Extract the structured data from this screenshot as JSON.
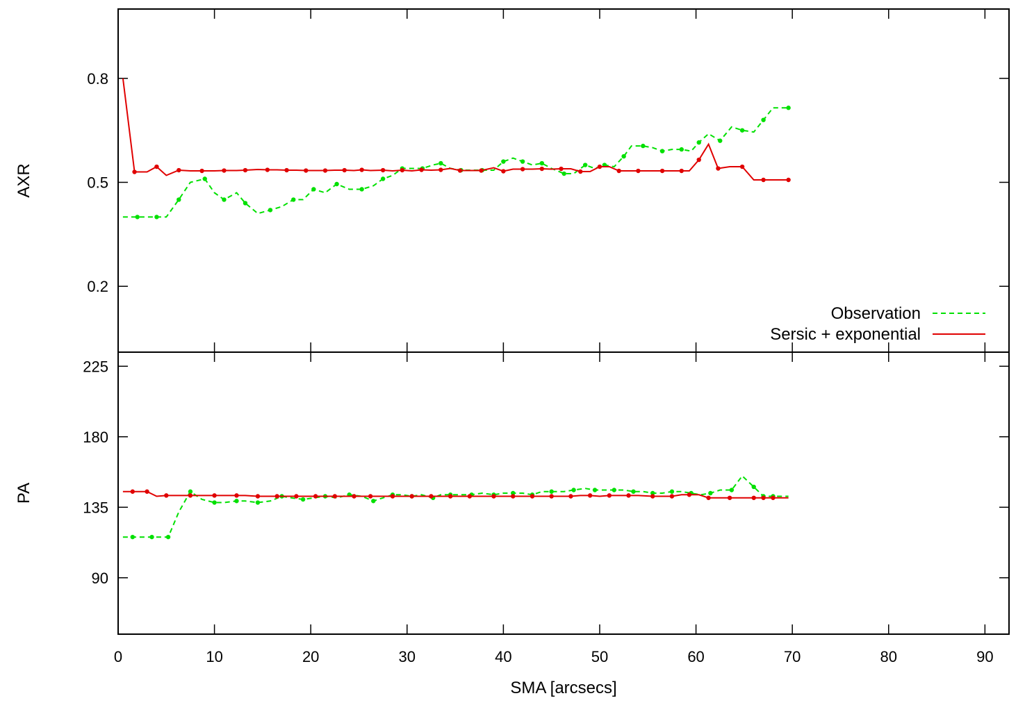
{
  "chart_data": {
    "type": "line",
    "xlabel": "SMA [arcsecs]",
    "xlim": [
      0,
      92.5
    ],
    "xticks": [
      0,
      10,
      20,
      30,
      40,
      50,
      60,
      70,
      80,
      90
    ],
    "legend": {
      "placement": "bottom-right of top panel",
      "entries": [
        "Observation",
        "Sersic + exponential"
      ]
    },
    "colors": {
      "Observation": "#00e000",
      "Sersic + exponential": "#e00000"
    },
    "panels": [
      {
        "ylabel": "AXR",
        "ylim": [
          0.01,
          1.0
        ],
        "yticks": [
          0.2,
          0.5,
          0.8
        ],
        "series": [
          {
            "name": "Observation",
            "style": "dashed",
            "x": [
              0.5,
              2.0,
              3.0,
              4.0,
              5.0,
              6.3,
              7.5,
              9.0,
              10.0,
              11.0,
              12.3,
              13.2,
              14.5,
              15.8,
              17.0,
              18.2,
              19.2,
              20.3,
              21.5,
              22.7,
              24.0,
              25.3,
              26.5,
              27.5,
              28.5,
              29.5,
              30.5,
              31.6,
              32.7,
              33.5,
              34.5,
              35.6,
              36.7,
              37.8,
              39.0,
              40.0,
              41.0,
              42.0,
              43.0,
              44.0,
              45.0,
              46.3,
              47.3,
              48.5,
              49.5,
              50.5,
              51.5,
              52.5,
              53.3,
              54.5,
              55.5,
              56.5,
              57.5,
              58.5,
              59.5,
              60.3,
              61.3,
              62.5,
              63.7,
              64.8,
              66.0,
              67.0,
              68.0,
              69.6
            ],
            "y": [
              0.4,
              0.4,
              0.4,
              0.4,
              0.4,
              0.45,
              0.5,
              0.51,
              0.47,
              0.45,
              0.47,
              0.44,
              0.41,
              0.42,
              0.43,
              0.45,
              0.45,
              0.48,
              0.47,
              0.495,
              0.48,
              0.48,
              0.49,
              0.51,
              0.52,
              0.54,
              0.54,
              0.54,
              0.55,
              0.555,
              0.54,
              0.535,
              0.535,
              0.535,
              0.535,
              0.56,
              0.57,
              0.56,
              0.55,
              0.555,
              0.54,
              0.525,
              0.525,
              0.55,
              0.54,
              0.55,
              0.545,
              0.575,
              0.605,
              0.605,
              0.6,
              0.59,
              0.595,
              0.595,
              0.59,
              0.615,
              0.64,
              0.62,
              0.66,
              0.65,
              0.645,
              0.68,
              0.715,
              0.715
            ]
          },
          {
            "name": "Sersic + exponential",
            "style": "solid",
            "x": [
              0.5,
              1.7,
              3.0,
              4.0,
              5.0,
              6.3,
              7.5,
              8.7,
              10.0,
              11.0,
              12.3,
              13.2,
              14.5,
              15.5,
              16.5,
              17.5,
              18.5,
              19.5,
              20.5,
              21.5,
              22.5,
              23.5,
              24.5,
              25.3,
              26.2,
              27.5,
              28.5,
              29.5,
              30.5,
              31.5,
              32.5,
              33.5,
              34.5,
              35.5,
              36.5,
              37.7,
              39.0,
              40.0,
              41.0,
              42.0,
              43.0,
              44.0,
              45.0,
              46.0,
              47.0,
              48.0,
              49.0,
              50.0,
              51.0,
              52.0,
              53.0,
              54.0,
              55.5,
              56.5,
              57.5,
              58.5,
              59.3,
              60.3,
              61.3,
              62.3,
              63.5,
              64.8,
              66.0,
              67.0,
              68.0,
              69.6
            ],
            "y": [
              0.8,
              0.53,
              0.53,
              0.545,
              0.52,
              0.535,
              0.533,
              0.533,
              0.533,
              0.534,
              0.534,
              0.535,
              0.537,
              0.536,
              0.536,
              0.535,
              0.535,
              0.534,
              0.534,
              0.534,
              0.535,
              0.535,
              0.534,
              0.536,
              0.534,
              0.535,
              0.533,
              0.535,
              0.533,
              0.536,
              0.535,
              0.536,
              0.54,
              0.534,
              0.534,
              0.534,
              0.542,
              0.532,
              0.538,
              0.538,
              0.538,
              0.539,
              0.538,
              0.539,
              0.539,
              0.531,
              0.531,
              0.545,
              0.545,
              0.533,
              0.533,
              0.533,
              0.533,
              0.533,
              0.533,
              0.533,
              0.533,
              0.565,
              0.61,
              0.54,
              0.545,
              0.545,
              0.507,
              0.507,
              0.507,
              0.507
            ]
          }
        ]
      },
      {
        "ylabel": "PA",
        "ylim": [
          54,
          234
        ],
        "yticks": [
          90,
          135,
          180,
          225
        ],
        "series": [
          {
            "name": "Observation",
            "style": "dashed",
            "x": [
              0.5,
              1.5,
              2.5,
              3.5,
              4.5,
              5.2,
              6.3,
              7.5,
              8.7,
              10.0,
              11.0,
              12.3,
              13.2,
              14.5,
              15.8,
              17.0,
              18.0,
              19.2,
              20.3,
              21.5,
              22.7,
              24.0,
              25.3,
              26.5,
              27.5,
              28.5,
              29.5,
              30.5,
              31.5,
              32.7,
              33.5,
              34.5,
              35.5,
              36.7,
              37.8,
              39.0,
              40.0,
              41.0,
              42.0,
              43.0,
              44.0,
              45.0,
              46.3,
              47.3,
              48.5,
              49.5,
              50.5,
              51.5,
              52.5,
              53.5,
              54.5,
              55.5,
              56.5,
              57.5,
              58.5,
              59.5,
              60.5,
              61.5,
              62.5,
              63.7,
              64.8,
              66.0,
              67.0,
              68.0,
              69.6
            ],
            "y": [
              116,
              116,
              116,
              116,
              116,
              116,
              132,
              145,
              140,
              138,
              138,
              139,
              139,
              138,
              139,
              142,
              141,
              140,
              141,
              142,
              141,
              143,
              142,
              139,
              141,
              143,
              143,
              142,
              143,
              141,
              143,
              143,
              143,
              143,
              144,
              143,
              144,
              144,
              144,
              143,
              145,
              145,
              145,
              146,
              147,
              146,
              146,
              146,
              146,
              145,
              145,
              144,
              144,
              145,
              145,
              144,
              143,
              144,
              146,
              146,
              155,
              148,
              142,
              142,
              142
            ]
          },
          {
            "name": "Sersic + exponential",
            "style": "solid",
            "x": [
              0.5,
              1.5,
              2.5,
              3.0,
              4.0,
              5.0,
              6.3,
              7.5,
              8.7,
              10.0,
              11.0,
              12.3,
              13.2,
              14.5,
              15.5,
              16.5,
              17.5,
              18.5,
              19.5,
              20.5,
              21.5,
              22.5,
              23.5,
              24.5,
              25.3,
              26.2,
              27.5,
              28.5,
              29.5,
              30.5,
              31.5,
              32.5,
              33.5,
              34.5,
              35.5,
              36.5,
              37.7,
              39.0,
              40.0,
              41.0,
              42.0,
              43.0,
              44.0,
              45.0,
              46.0,
              47.0,
              48.0,
              49.0,
              50.0,
              51.0,
              52.0,
              53.0,
              54.0,
              55.5,
              56.5,
              57.5,
              58.5,
              59.3,
              60.3,
              61.3,
              62.3,
              63.5,
              64.8,
              66.0,
              67.0,
              68.0,
              69.6
            ],
            "y": [
              145,
              145,
              145,
              145,
              142,
              142.5,
              142.5,
              142.5,
              142.5,
              142.5,
              142.5,
              142.5,
              142.5,
              142,
              142,
              142,
              142,
              142,
              142,
              142,
              142,
              142,
              142,
              142,
              142,
              142,
              142,
              142,
              142,
              142,
              142,
              142,
              142,
              142,
              142,
              142,
              142,
              142,
              142,
              142,
              142,
              142,
              142,
              142,
              142,
              142,
              142.5,
              142.5,
              142,
              142.5,
              142.5,
              142.5,
              142.5,
              142,
              142,
              142,
              143,
              143,
              143,
              141,
              141,
              141,
              141,
              141,
              141,
              141,
              141
            ]
          }
        ]
      }
    ]
  }
}
